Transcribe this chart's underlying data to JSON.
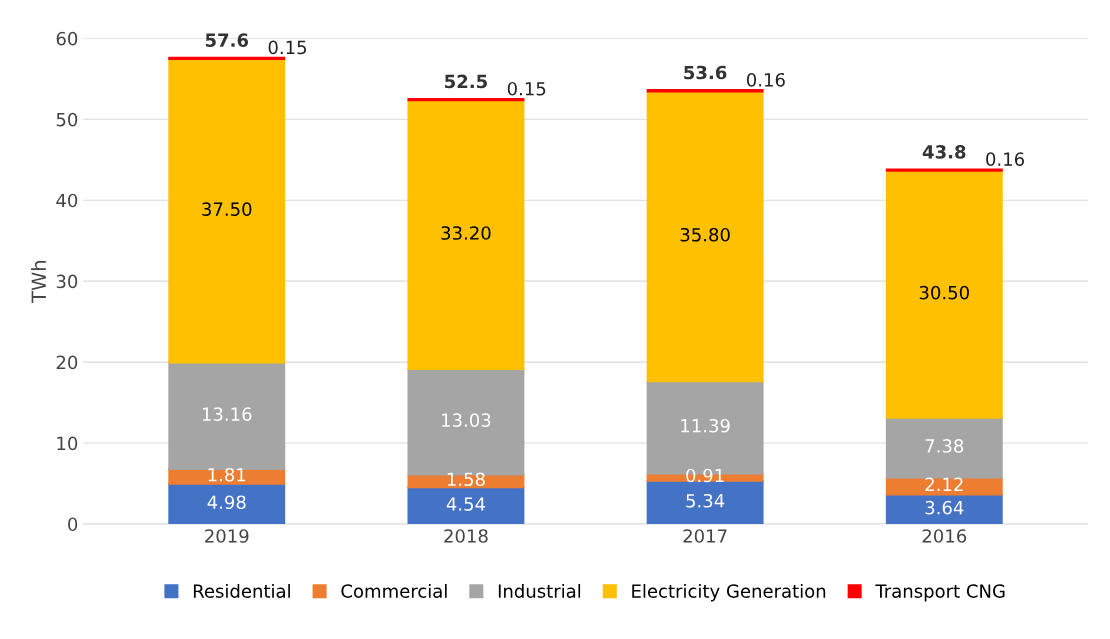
{
  "chart_data": {
    "type": "bar",
    "stacked": true,
    "ylabel": "TWh",
    "categories": [
      "2019",
      "2018",
      "2017",
      "2016"
    ],
    "series": [
      {
        "name": "Residential",
        "color": "#4472c4",
        "values": [
          4.98,
          4.54,
          5.34,
          3.64
        ],
        "value_labels": [
          "4.98",
          "4.54",
          "5.34",
          "3.64"
        ]
      },
      {
        "name": "Commercial",
        "color": "#ed7d31",
        "values": [
          1.81,
          1.58,
          0.91,
          2.12
        ],
        "value_labels": [
          "1.81",
          "1.58",
          "0.91",
          "2.12"
        ]
      },
      {
        "name": "Industrial",
        "color": "#a5a5a5",
        "values": [
          13.16,
          13.03,
          11.39,
          7.38
        ],
        "value_labels": [
          "13.16",
          "13.03",
          "11.39",
          "7.38"
        ]
      },
      {
        "name": "Electricity Generation",
        "color": "#ffc000",
        "values": [
          37.5,
          33.2,
          35.8,
          30.5
        ],
        "value_labels": [
          "37.50",
          "33.20",
          "35.80",
          "30.50"
        ]
      },
      {
        "name": "Transport CNG",
        "color": "#ff0000",
        "values": [
          0.15,
          0.15,
          0.16,
          0.16
        ],
        "value_labels": [
          "0.15",
          "0.15",
          "0.16",
          "0.16"
        ]
      }
    ],
    "totals": [
      "57.6",
      "52.5",
      "53.6",
      "43.8"
    ],
    "ylim": [
      0,
      60
    ],
    "yticks": [
      0,
      10,
      20,
      30,
      40,
      50,
      60
    ],
    "grid": "y",
    "legend": "bottom"
  }
}
